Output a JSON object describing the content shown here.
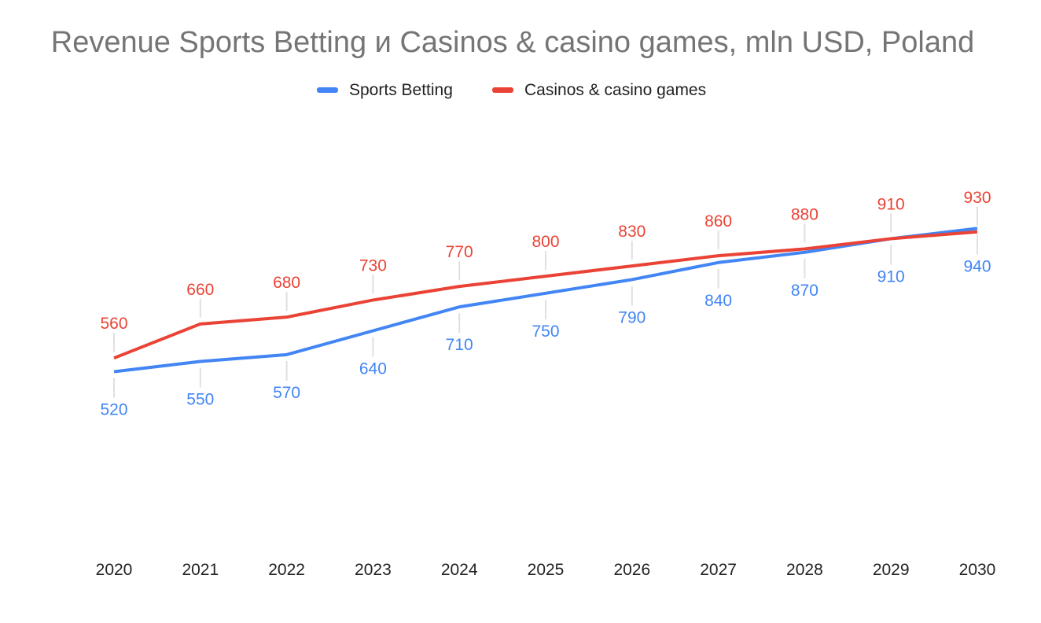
{
  "chart_data": {
    "type": "line",
    "title": "Revenue Sports Betting и Casinos & casino games, mln USD, Poland",
    "xlabel": "",
    "ylabel": "",
    "x": [
      "2020",
      "2021",
      "2022",
      "2023",
      "2024",
      "2025",
      "2026",
      "2027",
      "2028",
      "2029",
      "2030"
    ],
    "ylim": [
      0,
      1250
    ],
    "grid": false,
    "legend_position": "top",
    "series": [
      {
        "name": "Sports Betting",
        "color": "#4285f4",
        "label_position": "below",
        "values": [
          520,
          550,
          570,
          640,
          710,
          750,
          790,
          840,
          870,
          910,
          940
        ]
      },
      {
        "name": "Casinos & casino games",
        "color": "#ea4335",
        "label_position": "above",
        "values": [
          560,
          660,
          680,
          730,
          770,
          800,
          830,
          860,
          880,
          910,
          930
        ]
      }
    ]
  }
}
